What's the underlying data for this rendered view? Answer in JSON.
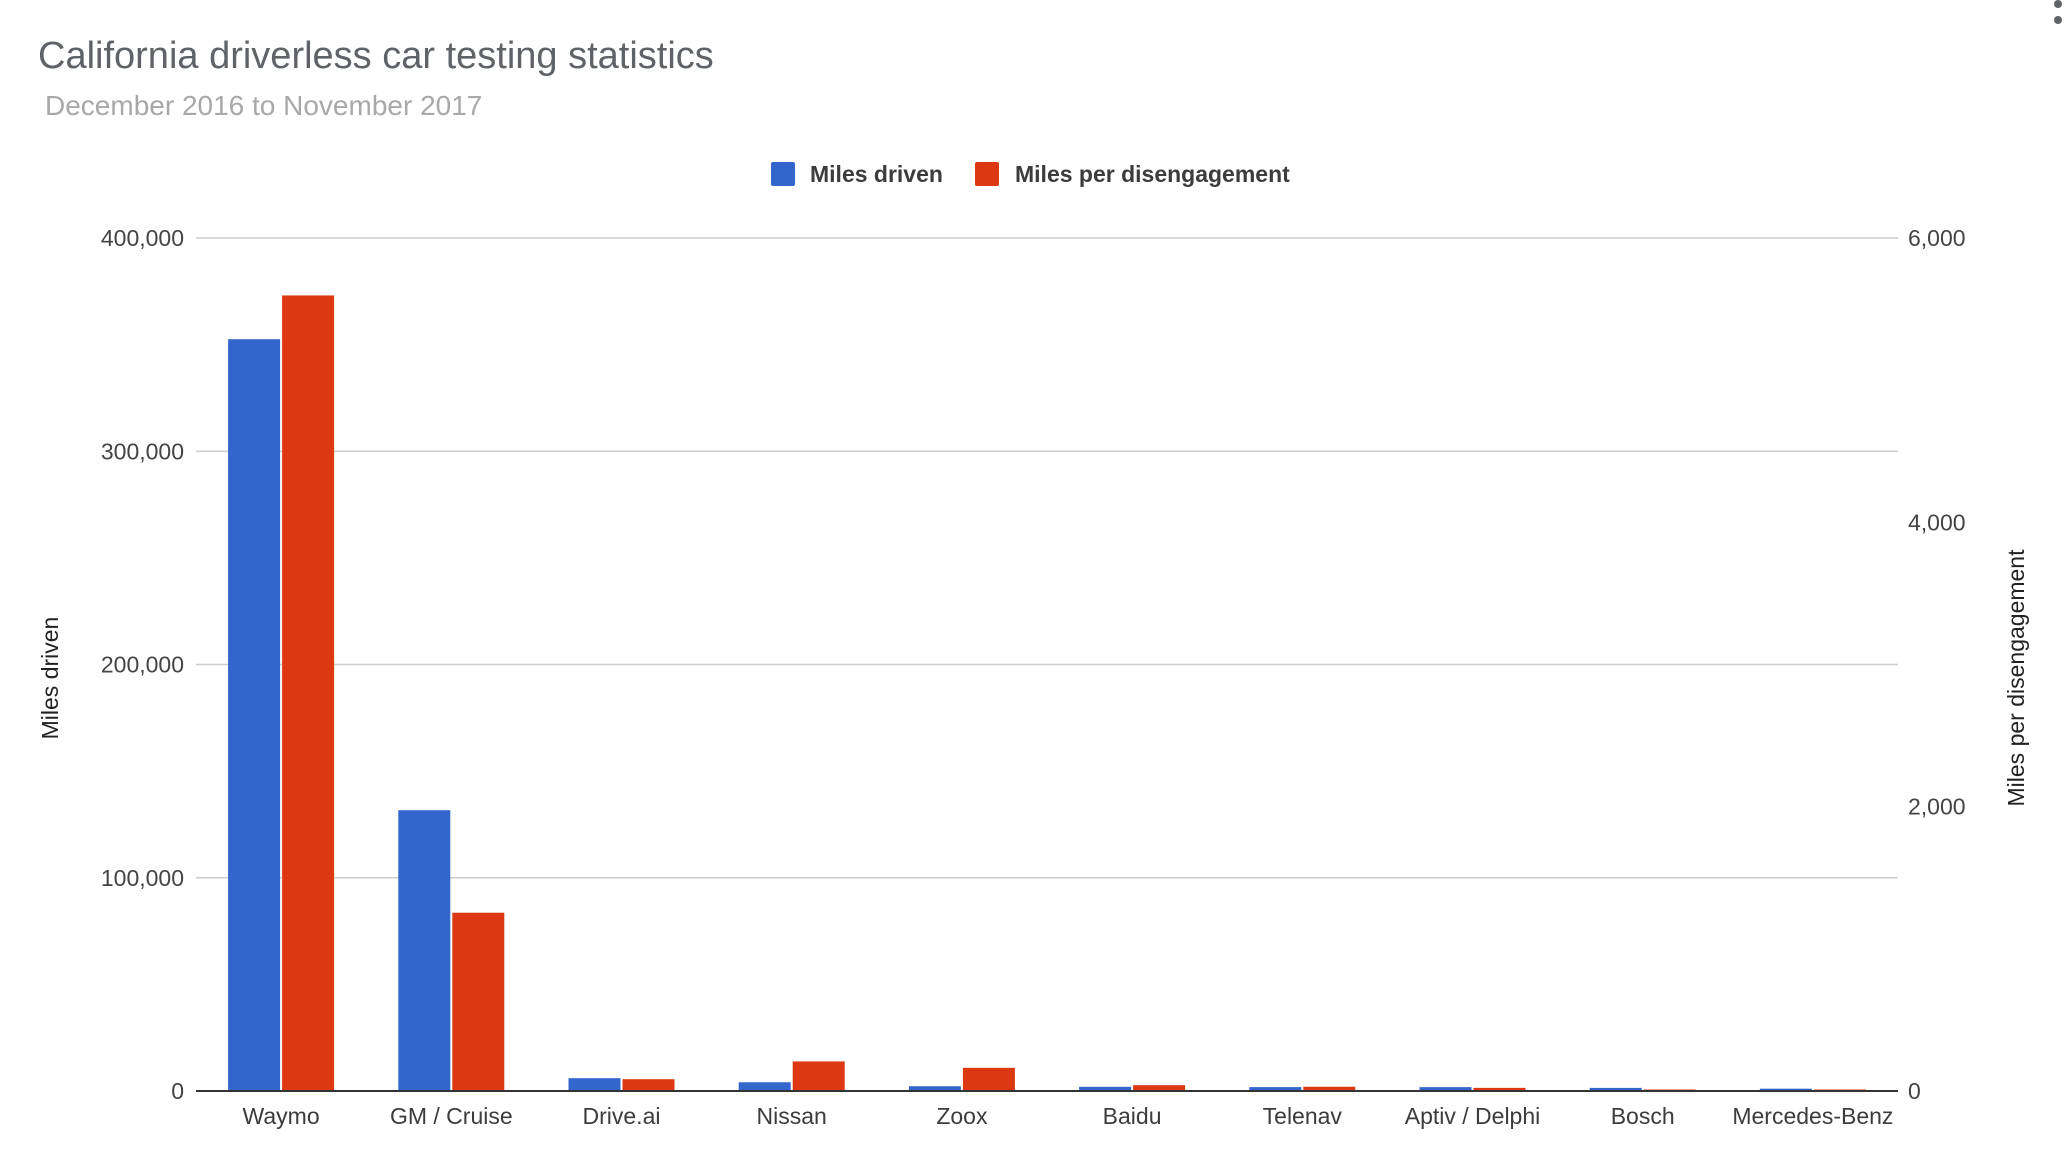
{
  "chart_data": {
    "type": "bar",
    "title": "California driverless car testing statistics",
    "subtitle": "December 2016 to November 2017",
    "categories": [
      "Waymo",
      "GM / Cruise",
      "Drive.ai",
      "Nissan",
      "Zoox",
      "Baidu",
      "Telenav",
      "Aptiv / Delphi",
      "Bosch",
      "Mercedes-Benz"
    ],
    "series": [
      {
        "name": "Miles driven",
        "axis": "left",
        "color": "#3366cc",
        "values": [
          352545,
          131676,
          6015,
          4099,
          2244,
          1971,
          1824,
          1811,
          1454,
          1087
        ]
      },
      {
        "name": "Miles per disengagement",
        "axis": "right",
        "color": "#dc3912",
        "values": [
          5596,
          1254,
          83,
          208,
          163,
          41,
          30,
          22,
          0.7,
          1.3
        ]
      }
    ],
    "ylabel": "Miles driven",
    "ylabel_right": "Miles per disengagement",
    "ylim": [
      0,
      400000
    ],
    "ylim_right": [
      0,
      6000
    ],
    "yticks": [
      "0",
      "100,000",
      "200,000",
      "300,000",
      "400,000"
    ],
    "yticks_right": [
      "0",
      "2,000",
      "4,000",
      "6,000"
    ],
    "legend_position": "top",
    "grid": true
  }
}
